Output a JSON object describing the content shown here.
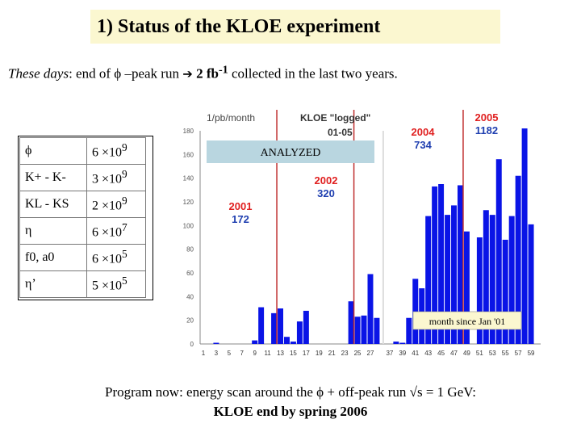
{
  "header": {
    "title": "1) Status of the KLOE experiment",
    "sub_italic": "These days",
    "sub_a": ": end of ",
    "phi": "ϕ",
    "sub_b": " –peak run ",
    "arrow": "➔",
    "sub_bold_a": " 2 fb",
    "sub_bold_sup": "-1",
    "sub_c": " collected in the last two years."
  },
  "yields": [
    {
      "particle": "ϕ",
      "value": "6 ×10",
      "exp": "9"
    },
    {
      "particle": "K+ - K-",
      "value": "3 ×10",
      "exp": "9"
    },
    {
      "particle": "KL - KS",
      "value": "2 ×10",
      "exp": "9"
    },
    {
      "particle": "η",
      "value": "6 ×10",
      "exp": "7"
    },
    {
      "particle": "f0, a0",
      "value": "6 ×10",
      "exp": "5"
    },
    {
      "particle": "η’",
      "value": "5 ×10",
      "exp": "5"
    }
  ],
  "chart_data": {
    "type": "bar",
    "title": "KLOE \"logged\"",
    "subtitle": "01-05",
    "ylabel": "1/pb/month",
    "xlabel": "month since Jan '01",
    "ylim": [
      0,
      180
    ],
    "yticks": [
      0,
      20,
      40,
      60,
      80,
      100,
      120,
      140,
      160,
      180
    ],
    "xtick_labels": [
      "1",
      "3",
      "5",
      "7",
      "9",
      "11",
      "13",
      "15",
      "17",
      "19",
      "21",
      "23",
      "25",
      "27",
      "37",
      "39",
      "41",
      "43",
      "45",
      "47",
      "49",
      "51",
      "53",
      "55",
      "57",
      "59"
    ],
    "segment1_months": [
      1,
      2,
      3,
      4,
      5,
      6,
      7,
      8,
      9,
      10,
      11,
      12,
      13,
      14,
      15,
      16,
      17,
      18,
      19,
      20,
      21,
      22,
      23,
      24,
      25,
      26,
      27,
      28
    ],
    "segment1_values": [
      0,
      0,
      1,
      0,
      0,
      0,
      0,
      0,
      3,
      31,
      0,
      26,
      30,
      6,
      2,
      19,
      28,
      0,
      0,
      0,
      0,
      0,
      0,
      36,
      23,
      24,
      59,
      22
    ],
    "segment2_months": [
      37,
      38,
      39,
      40,
      41,
      42,
      43,
      44,
      45,
      46,
      47,
      48,
      49,
      50,
      51,
      52,
      53,
      54,
      55,
      56,
      57,
      58,
      59,
      60
    ],
    "segment2_values": [
      0,
      2,
      1,
      22,
      55,
      47,
      108,
      133,
      135,
      109,
      117,
      134,
      95,
      0,
      90,
      113,
      109,
      156,
      88,
      108,
      142,
      182,
      101,
      0
    ],
    "analyzed_label": "ANALYZED",
    "annotations": [
      {
        "year": "2001",
        "value": "172",
        "color": "#e02020"
      },
      {
        "year": "2002",
        "value": "320",
        "color": "#e02020"
      },
      {
        "year": "2004",
        "value": "734",
        "color": "#e02020"
      },
      {
        "year": "2005",
        "value": "1182",
        "color": "#e02020"
      }
    ],
    "value_color": "#1f3fb0",
    "bar_color": "#0a14e6",
    "separator_color": "#c03030",
    "analyzed_color": "#b9d6e0"
  },
  "footer": {
    "line1_a": "Program now: energy scan around the ",
    "phi": "ϕ",
    "line1_b": " + off-peak run ",
    "sqrt": "√s",
    "line1_c": " = 1 GeV:",
    "line2": "KLOE end by spring 2006"
  }
}
